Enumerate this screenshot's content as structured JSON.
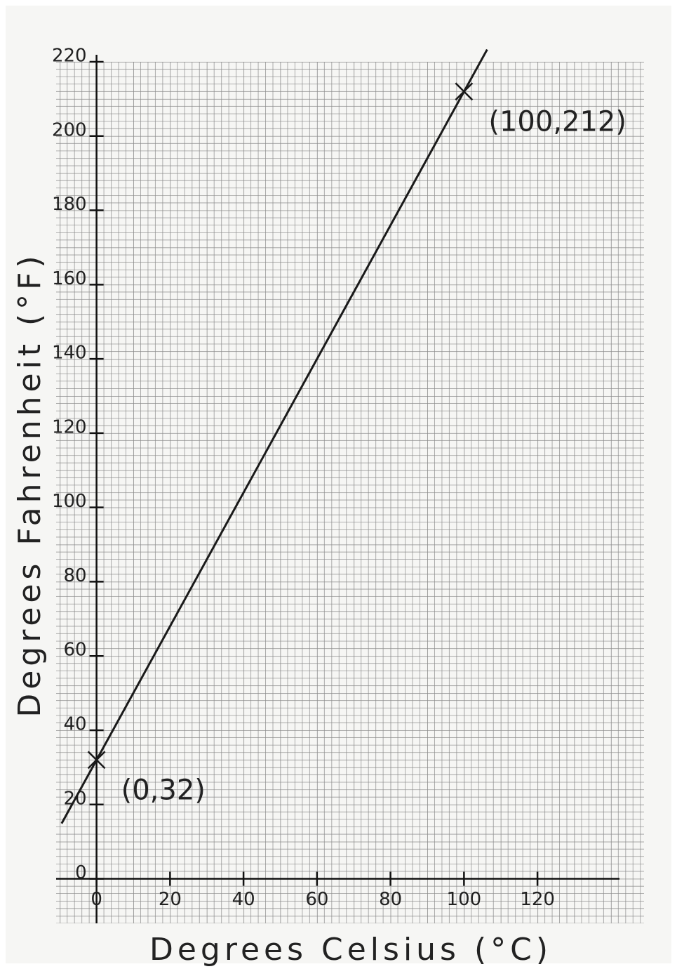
{
  "chart_data": {
    "type": "line",
    "x_label": "Degrees Celsius (°C)",
    "y_label": "Degrees Fahrenheit (°F)",
    "xlim": [
      -11,
      149
    ],
    "ylim": [
      -12,
      220
    ],
    "xticks": [
      0,
      20,
      40,
      60,
      80,
      100,
      120
    ],
    "yticks": [
      0,
      20,
      40,
      60,
      80,
      100,
      120,
      140,
      160,
      180,
      200,
      220
    ],
    "series": [
      {
        "x": [
          -9.5,
          106.3
        ],
        "values": [
          14.9,
          223.3
        ],
        "color": "#1a1a1a"
      },
      {
        "x": [
          0,
          100
        ],
        "values": [
          32,
          212
        ],
        "color": "#1a1a1a",
        "marker": "x"
      }
    ],
    "annotations": [
      {
        "text": "(0,32)",
        "x": 0,
        "y": 32
      },
      {
        "text": "(100,212)",
        "x": 100,
        "y": 212
      }
    ]
  }
}
